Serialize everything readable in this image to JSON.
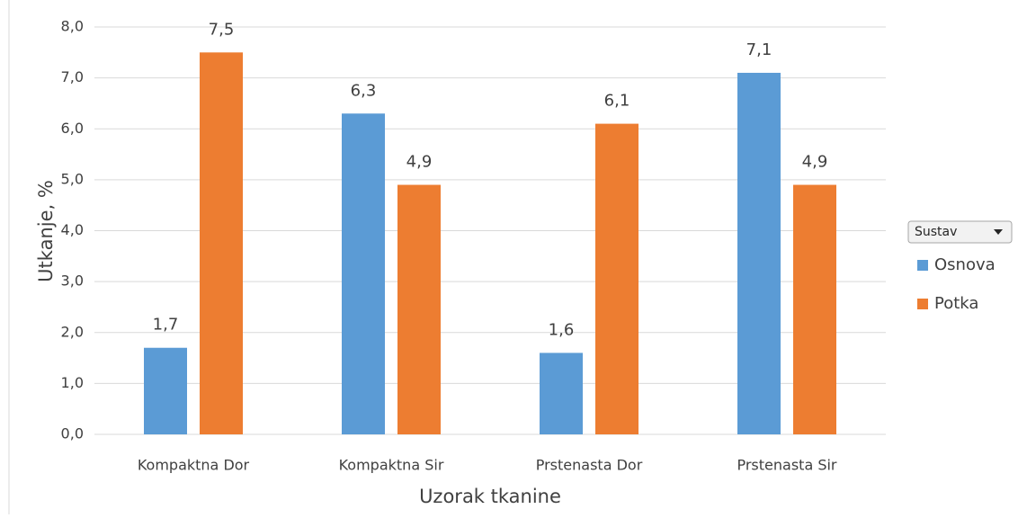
{
  "chart_data": {
    "type": "bar",
    "categories": [
      "Kompaktna Dor",
      "Kompaktna Sir",
      "Prstenasta Dor",
      "Prstenasta Sir"
    ],
    "series": [
      {
        "name": "Osnova",
        "color": "#5b9bd5",
        "values": [
          1.7,
          6.3,
          1.6,
          7.1
        ],
        "value_labels": [
          "1,7",
          "6,3",
          "1,6",
          "7,1"
        ]
      },
      {
        "name": "Potka",
        "color": "#ed7d31",
        "values": [
          7.5,
          4.9,
          6.1,
          4.9
        ],
        "value_labels": [
          "7,5",
          "4,9",
          "6,1",
          "4,9"
        ]
      }
    ],
    "ylabel": "Utkanje, %",
    "xlabel": "Uzorak tkanine",
    "legend_title": "Sustav",
    "ylim": [
      0,
      8
    ],
    "yticks": [
      {
        "value": 0,
        "label": "0,0"
      },
      {
        "value": 1,
        "label": "1,0"
      },
      {
        "value": 2,
        "label": "2,0"
      },
      {
        "value": 3,
        "label": "3,0"
      },
      {
        "value": 4,
        "label": "4,0"
      },
      {
        "value": 5,
        "label": "5,0"
      },
      {
        "value": 6,
        "label": "6,0"
      },
      {
        "value": 7,
        "label": "7,0"
      },
      {
        "value": 8,
        "label": "8,0"
      }
    ],
    "grid": true,
    "legend": "right"
  }
}
